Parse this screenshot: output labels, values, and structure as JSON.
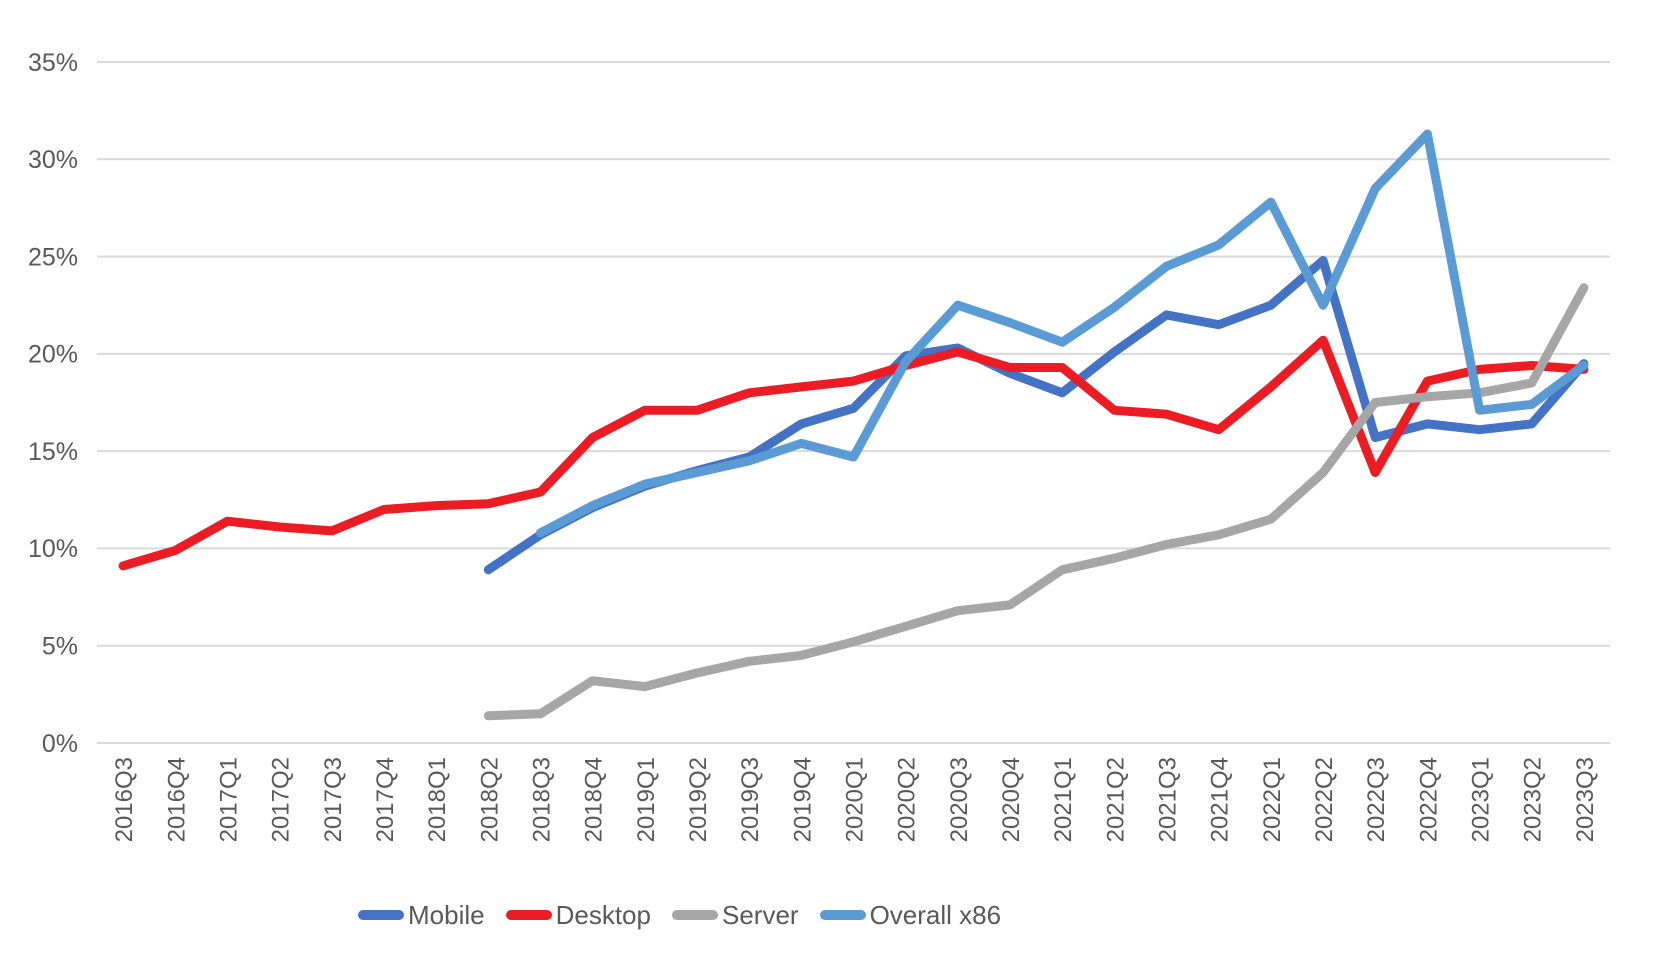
{
  "chart_data": {
    "type": "line",
    "title": "",
    "xlabel": "",
    "ylabel": "",
    "ylim": [
      0,
      35
    ],
    "y_ticks": [
      "0%",
      "5%",
      "10%",
      "15%",
      "20%",
      "25%",
      "30%",
      "35%"
    ],
    "grid": "horizontal",
    "legend_position": "bottom",
    "categories": [
      "2016Q3",
      "2016Q4",
      "2017Q1",
      "2017Q2",
      "2017Q3",
      "2017Q4",
      "2018Q1",
      "2018Q2",
      "2018Q3",
      "2018Q4",
      "2019Q1",
      "2019Q2",
      "2019Q3",
      "2019Q4",
      "2020Q1",
      "2020Q2",
      "2020Q3",
      "2020Q4",
      "2021Q1",
      "2021Q2",
      "2021Q3",
      "2021Q4",
      "2022Q1",
      "2022Q2",
      "2022Q3",
      "2022Q4",
      "2023Q1",
      "2023Q2",
      "2023Q3"
    ],
    "series": [
      {
        "name": "Mobile",
        "color": "#4472C4",
        "values": [
          null,
          null,
          null,
          null,
          null,
          null,
          null,
          8.9,
          10.7,
          12.1,
          13.2,
          14.0,
          14.7,
          16.4,
          17.2,
          19.9,
          20.3,
          19.0,
          18.0,
          20.1,
          22.0,
          21.5,
          22.5,
          24.8,
          15.7,
          16.4,
          16.1,
          16.4,
          19.5
        ]
      },
      {
        "name": "Desktop",
        "color": "#EC1C24",
        "values": [
          9.1,
          9.9,
          11.4,
          11.1,
          10.9,
          12.0,
          12.2,
          12.3,
          12.9,
          15.7,
          17.1,
          17.1,
          18.0,
          18.3,
          18.6,
          19.4,
          20.1,
          19.3,
          19.3,
          17.1,
          16.9,
          16.1,
          18.3,
          20.7,
          13.9,
          18.6,
          19.2,
          19.4,
          19.2
        ]
      },
      {
        "name": "Server",
        "color": "#A6A6A6",
        "values": [
          null,
          null,
          null,
          null,
          null,
          null,
          null,
          1.4,
          1.5,
          3.2,
          2.9,
          3.6,
          4.2,
          4.5,
          5.2,
          6.0,
          6.8,
          7.1,
          8.9,
          9.5,
          10.2,
          10.7,
          11.5,
          13.9,
          17.5,
          17.8,
          18.0,
          18.5,
          23.4
        ]
      },
      {
        "name": "Overall x86",
        "color": "#5B9BD5",
        "values": [
          null,
          null,
          null,
          null,
          null,
          null,
          null,
          null,
          10.8,
          12.2,
          13.3,
          13.9,
          14.5,
          15.4,
          14.7,
          19.6,
          22.5,
          21.6,
          20.6,
          22.4,
          24.5,
          25.6,
          27.8,
          22.5,
          28.5,
          31.3,
          17.1,
          17.4,
          19.4
        ]
      }
    ],
    "axis_text_color": "#595959",
    "gridline_color": "#D9D9D9"
  }
}
